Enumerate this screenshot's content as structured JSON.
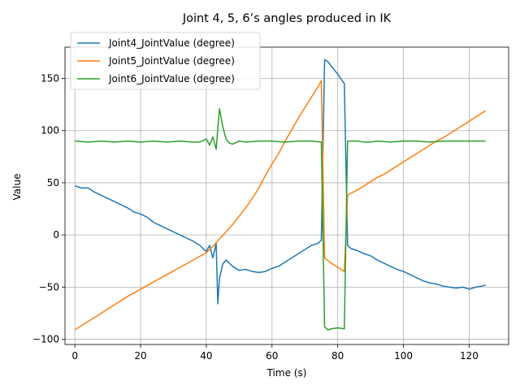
{
  "chart_data": {
    "type": "line",
    "title": "Joint 4, 5, 6’s angles produced in IK",
    "xlabel": "Time (s)",
    "ylabel": "Value",
    "xlim": [
      -3,
      132
    ],
    "ylim": [
      -105,
      180
    ],
    "xticks": [
      0,
      20,
      40,
      60,
      80,
      100,
      120
    ],
    "yticks": [
      -100,
      -50,
      0,
      50,
      100,
      150
    ],
    "grid": true,
    "legend_position": "upper-left",
    "series": [
      {
        "name": "Joint4_JointValue (degree)",
        "color": "#1f77b4",
        "x": [
          0,
          2,
          4,
          6,
          8,
          10,
          12,
          14,
          16,
          18,
          20,
          22,
          24,
          26,
          28,
          30,
          32,
          34,
          36,
          38,
          40,
          41,
          42,
          43,
          43.5,
          44,
          45,
          46,
          47,
          48,
          50,
          52,
          54,
          56,
          58,
          60,
          62,
          64,
          66,
          68,
          70,
          72,
          74,
          75,
          76,
          77,
          78,
          80,
          82,
          83,
          84,
          86,
          88,
          90,
          92,
          94,
          96,
          98,
          100,
          102,
          104,
          106,
          108,
          110,
          112,
          114,
          116,
          118,
          120,
          122,
          124,
          125
        ],
        "y": [
          47,
          45,
          45,
          41,
          38,
          35,
          32,
          29,
          26,
          22,
          20,
          17,
          12,
          9,
          6,
          3,
          0,
          -3,
          -6,
          -10,
          -16,
          -10,
          -22,
          -8,
          -66,
          -42,
          -28,
          -24,
          -27,
          -30,
          -34,
          -33,
          -35,
          -36,
          -35,
          -32,
          -30,
          -26,
          -22,
          -18,
          -14,
          -10,
          -8,
          -5,
          168,
          166,
          162,
          154,
          145,
          -10,
          -13,
          -15,
          -18,
          -20,
          -24,
          -27,
          -30,
          -33,
          -35,
          -38,
          -41,
          -44,
          -46,
          -47,
          -49,
          -50,
          -51,
          -50,
          -52,
          -50,
          -49,
          -48
        ]
      },
      {
        "name": "Joint5_JointValue (degree)",
        "color": "#ff7f0e",
        "x": [
          0,
          4,
          8,
          12,
          16,
          20,
          24,
          28,
          32,
          36,
          40,
          42,
          44,
          46,
          48,
          50,
          52,
          54,
          56,
          58,
          60,
          62,
          64,
          66,
          68,
          70,
          72,
          74,
          75,
          76,
          78,
          80,
          82,
          83,
          84,
          86,
          88,
          90,
          92,
          94,
          96,
          98,
          100,
          102,
          104,
          106,
          108,
          110,
          112,
          114,
          116,
          118,
          120,
          122,
          124,
          125
        ],
        "y": [
          -91,
          -83,
          -75,
          -67,
          -59,
          -52,
          -45,
          -38,
          -31,
          -24,
          -17,
          -11,
          -4,
          3,
          10,
          18,
          26,
          35,
          45,
          57,
          68,
          78,
          90,
          101,
          112,
          122,
          132,
          142,
          148,
          -22,
          -27,
          -31,
          -35,
          38,
          40,
          43,
          47,
          51,
          55,
          58,
          62,
          66,
          70,
          74,
          78,
          82,
          86,
          90,
          93,
          97,
          101,
          105,
          109,
          113,
          117,
          119
        ]
      },
      {
        "name": "Joint6_JointValue (degree)",
        "color": "#2ca02c",
        "x": [
          0,
          4,
          8,
          12,
          16,
          20,
          24,
          28,
          32,
          36,
          38,
          40,
          41,
          42,
          43,
          44,
          45,
          46,
          47,
          48,
          50,
          52,
          56,
          60,
          64,
          68,
          72,
          75,
          76,
          77,
          78,
          80,
          82,
          83,
          84,
          86,
          88,
          90,
          92,
          96,
          100,
          104,
          108,
          112,
          116,
          120,
          124,
          125
        ],
        "y": [
          90,
          89,
          90,
          89,
          90,
          89,
          90,
          89,
          90,
          89,
          89,
          92,
          86,
          94,
          82,
          121,
          104,
          92,
          88,
          87,
          90,
          89,
          90,
          90,
          89,
          90,
          90,
          89,
          -88,
          -91,
          -90,
          -89,
          -90,
          90,
          90,
          90,
          89,
          89,
          90,
          89,
          90,
          90,
          89,
          90,
          90,
          90,
          90,
          90
        ]
      }
    ]
  }
}
